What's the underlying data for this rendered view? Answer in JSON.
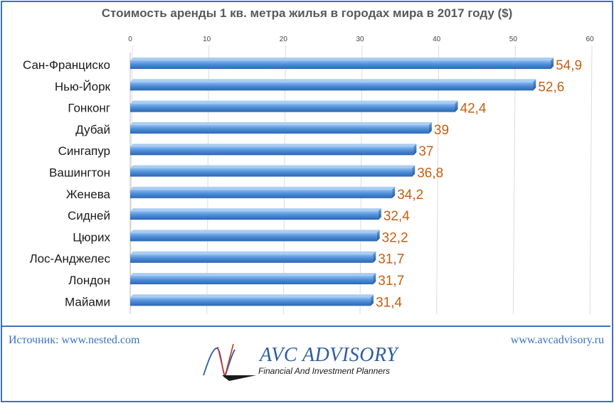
{
  "chart_data": {
    "type": "bar",
    "orientation": "horizontal",
    "title": "Стоимость аренды 1 кв. метра жилья в городах мира в 2017 году ($)",
    "categories": [
      "Сан-Франциско",
      "Нью-Йорк",
      "Гонконг",
      "Дубай",
      "Сингапур",
      "Вашингтон",
      "Женева",
      "Сидней",
      "Цюрих",
      "Лос-Анджелес",
      "Лондон",
      "Майами"
    ],
    "values": [
      54.9,
      52.6,
      42.4,
      39,
      37,
      36.8,
      34.2,
      32.4,
      32.2,
      31.7,
      31.7,
      31.4
    ],
    "data_labels": [
      "54,9",
      "52,6",
      "42,4",
      "39",
      "37",
      "36,8",
      "34,2",
      "32,4",
      "32,2",
      "31,7",
      "31,7",
      "31,4"
    ],
    "xlim": [
      0,
      60
    ],
    "xticks": [
      0,
      10,
      20,
      30,
      40,
      50,
      60
    ],
    "xtick_labels": [
      "0",
      "10",
      "20",
      "30",
      "40",
      "50",
      "60"
    ],
    "xaxis_position": "top",
    "grid": true,
    "legend": "none"
  },
  "colors": {
    "bar": "#4f8fd9",
    "data_label": "#c65f12",
    "accent": "#3a72c4",
    "title": "#595959"
  },
  "footer": {
    "source": "Источник: www.nested.com",
    "website": "www.avcadvisory.ru"
  },
  "logo": {
    "name": "AVC ADVISORY",
    "tagline": "Financial And Investment Planners"
  }
}
